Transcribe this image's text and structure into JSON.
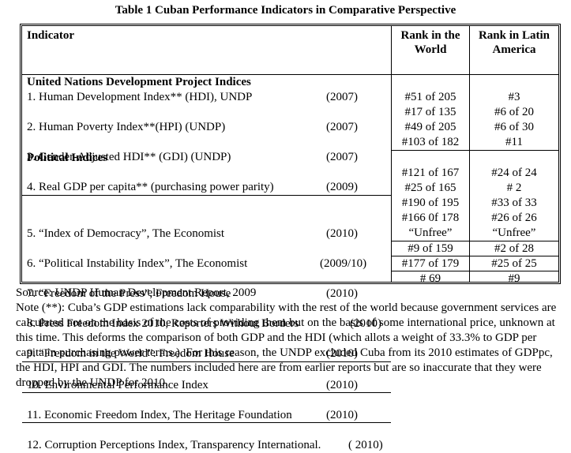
{
  "title": "Table 1    Cuban Performance Indicators in Comparative Perspective",
  "headers": {
    "indicator": "Indicator",
    "world": "Rank in the World",
    "latin": "Rank in Latin America"
  },
  "sections": [
    {
      "name": "United Nations Development Project Indices",
      "rows": [
        {
          "label": "1.  Human Development Index** (HDI),  UNDP",
          "year": "(2007)",
          "world": "#51 of 205",
          "latin": "#3"
        },
        {
          "label": "2.  Human Poverty Index**(HPI) (UNDP)",
          "year": "(2007)",
          "world": "#17 of 135",
          "latin": "#6 of 20"
        },
        {
          "label": "3.  Gender-Adjusted HDI**  (GDI) (UNDP)",
          "year": "(2007)",
          "world": "#49 of 205",
          "latin": "#6 of 30"
        },
        {
          "label": "4.  Real GDP per capita**  (purchasing power parity)",
          "year": "(2009)",
          "world": "#103 of 182",
          "latin": "#11"
        }
      ]
    },
    {
      "name": "Political Indices",
      "rows": [
        {
          "label": "5.  “Index of Democracy”, The Economist",
          "year": "(2010)",
          "world": "#121 of 167",
          "latin": "#24 of 24"
        },
        {
          "label": "6.  “Political Instability Index”, The Economist",
          "year": "(2009/10)",
          "world": "#25 of 165",
          "latin": "# 2"
        },
        {
          "label": "7.  “Freedom of the Press”, Freedom House",
          "year": "(2010)",
          "world": "#190 of 195",
          "latin": "#33 of 33"
        },
        {
          "label": "8.   Press Freedom Index 2010, Reporters Without Borders",
          "year": "(2010)",
          "world": "#166 0f 178",
          "latin": "#26 of 26"
        },
        {
          "label": "9.  “Freedom in the World”. Freedom House",
          "year": "(2010)",
          "world": "“Unfree”",
          "latin": "“Unfree”"
        }
      ]
    }
  ],
  "extra_rows": [
    {
      "label": "10. Environmental Performance Index",
      "year": "(2010)",
      "world": "#9 of 159",
      "latin": "#2 of 28"
    },
    {
      "label": "11. Economic Freedom Index, The Heritage Foundation",
      "year": "(2010)",
      "world": "#177 of 179",
      "latin": "#25 of 25"
    },
    {
      "label": "12. Corruption Perceptions Index, Transparency International.",
      "year": "( 2010)",
      "world": "# 69",
      "latin": "#9"
    }
  ],
  "source": "Source: UNDP Human Development Report, 2009",
  "note": "Note  (**): Cuba’s GDP estimations lack comparability  with the rest of the world because government services  are calculated not on the basis  of the costs of providing them but on the basis of some international price,  unknown at this time.  This deforms the comparison of both GDP and the HDI (which allots a weight of 33.3% to GDP per capita in purchasing power terms.). For this reason, the UNDP excluded Cuba from its 2010 estimates of GDPpc, the HDI, HPI and GDI. The numbers included here are from earlier reports but are so inaccurate that they were dropped by the UNDP for 2010."
}
